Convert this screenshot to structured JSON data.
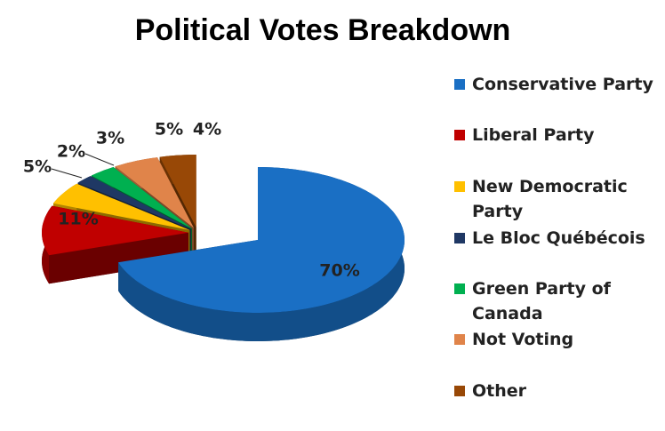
{
  "chart_data": {
    "type": "pie3d",
    "title": "Political Votes Breakdown",
    "categories": [
      "Conservative Party",
      "Liberal Party",
      "New Democratic Party",
      "Le Bloc Québécois",
      "Green Party of Canada",
      "Not Voting",
      "Other"
    ],
    "values": [
      70,
      11,
      5,
      2,
      3,
      5,
      4
    ],
    "value_labels": [
      "70%",
      "11%",
      "5%",
      "2%",
      "3%",
      "5%",
      "4%"
    ],
    "colors": [
      "#1a6fc4",
      "#c00000",
      "#ffc000",
      "#1f3864",
      "#00b050",
      "#e0844a",
      "#984806"
    ]
  }
}
